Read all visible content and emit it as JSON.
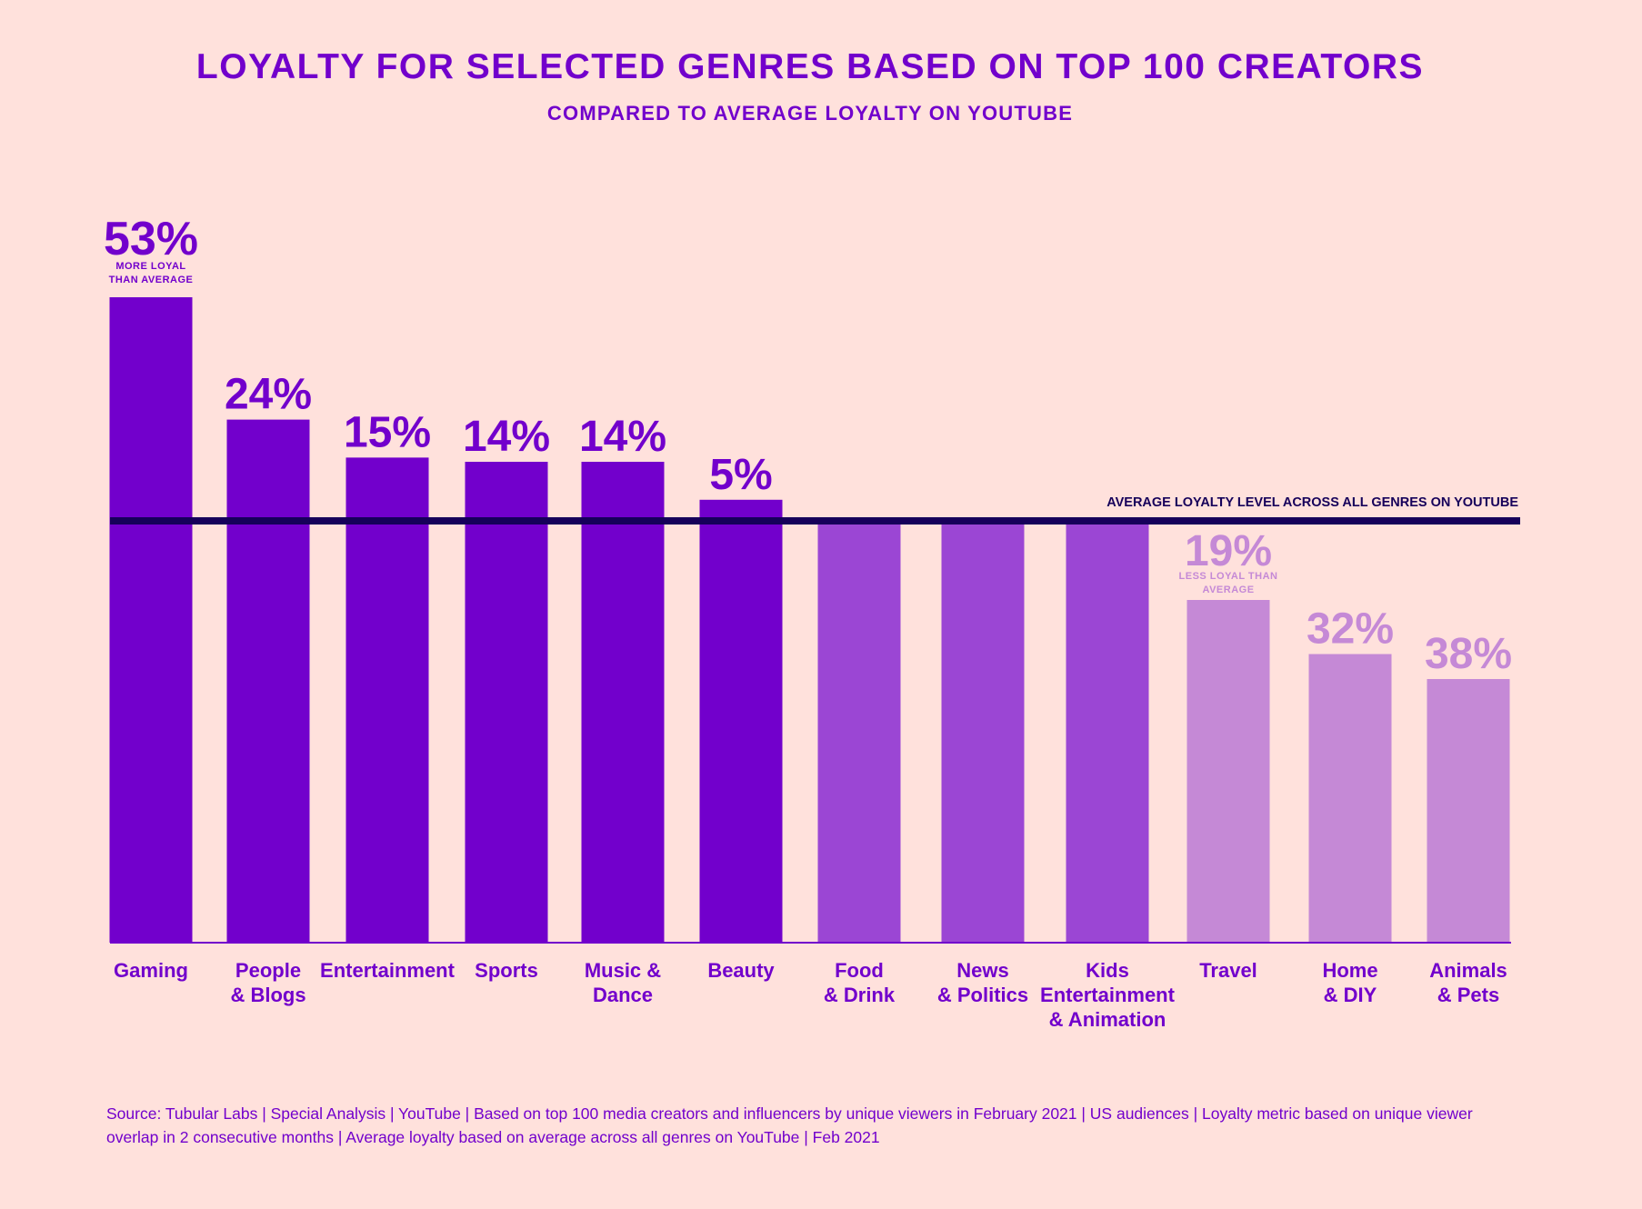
{
  "colors": {
    "background": "#ffe1dc",
    "text": "#7200cc",
    "above_average": "#7200cc",
    "near_average": "#9b46d4",
    "below_average": "#c589d6",
    "average_line": "#16005a"
  },
  "chart_data": {
    "type": "bar",
    "title": "LOYALTY FOR SELECTED GENRES BASED ON TOP 100 CREATORS",
    "subtitle": "COMPARED TO AVERAGE LOYALTY ON YOUTUBE",
    "xlabel": "",
    "ylabel": "",
    "baseline_value": 0,
    "ylim": [
      -100,
      53
    ],
    "categories": [
      "Gaming",
      "People\n& Blogs",
      "Entertainment",
      "Sports",
      "Music &\nDance",
      "Beauty",
      "Food\n& Drink",
      "News\n& Politics",
      "Kids\nEntertainment\n& Animation",
      "Travel",
      "Home\n& DIY",
      "Animals\n& Pets"
    ],
    "values": [
      53,
      24,
      15,
      14,
      14,
      5,
      0,
      0,
      0,
      -19,
      -32,
      -38
    ],
    "data_labels": [
      "53%",
      "24%",
      "15%",
      "14%",
      "14%",
      "5%",
      "",
      "",
      "",
      "19%",
      "32%",
      "38%"
    ],
    "annotations": [
      {
        "category": "Gaming",
        "text": "MORE LOYAL\nTHAN AVERAGE"
      },
      {
        "category": "Travel",
        "text": "LESS LOYAL THAN\nAVERAGE"
      }
    ],
    "reference_line": {
      "value": 0,
      "label": "AVERAGE LOYALTY LEVEL ACROSS ALL GENRES ON YOUTUBE"
    },
    "grid": false,
    "legend": "none"
  },
  "source": "Source: Tubular Labs | Special Analysis | YouTube | Based on top 100 media creators and influencers by unique viewers in February 2021 | US audiences | Loyalty metric based on unique viewer overlap in 2 consecutive months | Average loyalty based on average across all genres on YouTube | Feb 2021"
}
